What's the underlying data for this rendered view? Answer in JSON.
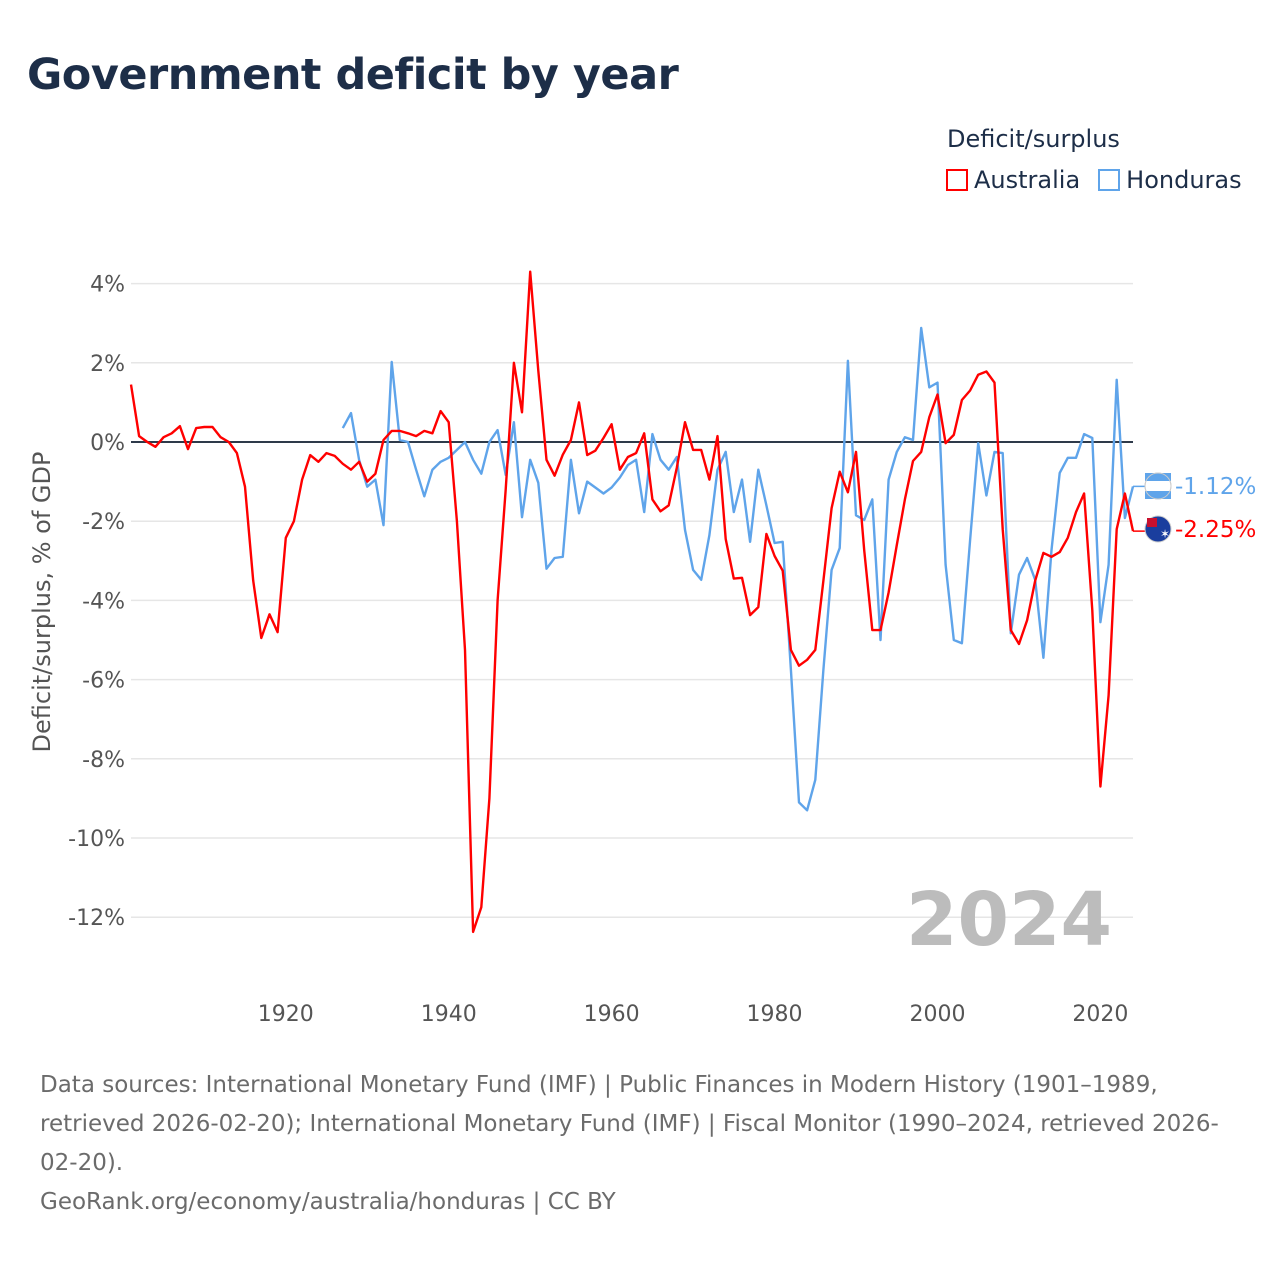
{
  "title": "Government deficit by year",
  "legend": {
    "title": "Deficit/surplus",
    "items": [
      {
        "name": "Australia",
        "color": "#ff0000"
      },
      {
        "name": "Honduras",
        "color": "#5fa4ea"
      }
    ]
  },
  "year_label": "2024",
  "end_labels": {
    "Australia": "-2.25%",
    "Honduras": "-1.12%"
  },
  "footer": {
    "sources": "Data sources: International Monetary Fund (IMF) | Public Finances in Modern History (1901–1989, retrieved 2026-02-20); International Monetary Fund (IMF) | Fiscal Monitor (1990–2024, retrieved 2026-02-20).",
    "credit": "GeoRank.org/economy/australia/honduras | CC BY"
  },
  "chart_data": {
    "type": "line",
    "title": "Government deficit by year",
    "xlabel": "",
    "ylabel": "Deficit/surplus, % of GDP",
    "xlim": [
      1901,
      2024
    ],
    "ylim": [
      -13,
      4.5
    ],
    "xticks": [
      1920,
      1940,
      1960,
      1980,
      2000,
      2020
    ],
    "yticks": [
      4,
      2,
      0,
      -2,
      -4,
      -6,
      -8,
      -10,
      -12
    ],
    "ytick_labels": [
      "4%",
      "2%",
      "0%",
      "-2%",
      "-4%",
      "-6%",
      "-8%",
      "-10%",
      "-12%"
    ],
    "grid": true,
    "legend_position": "top-right",
    "series": [
      {
        "name": "Australia",
        "start_year": 1901,
        "values": [
          1.45,
          0.15,
          0,
          -0.12,
          0.12,
          0.22,
          0.4,
          -0.18,
          0.35,
          0.38,
          0.38,
          0.12,
          0,
          -0.28,
          -1.13,
          -3.5,
          -4.95,
          -4.35,
          -4.8,
          -2.42,
          -2.0,
          -0.95,
          -0.33,
          -0.5,
          -0.28,
          -0.35,
          -0.55,
          -0.7,
          -0.5,
          -1.0,
          -0.8,
          0.05,
          0.28,
          0.28,
          0.22,
          0.15,
          0.28,
          0.22,
          0.78,
          0.5,
          -2.0,
          -5.25,
          -12.37,
          -11.75,
          -9.0,
          -4.0,
          -1.2,
          2.0,
          0.75,
          4.3,
          1.8,
          -0.45,
          -0.85,
          -0.32,
          0.05,
          1.0,
          -0.33,
          -0.22,
          0.1,
          0.45,
          -0.7,
          -0.38,
          -0.28,
          0.22,
          -1.45,
          -1.75,
          -1.6,
          -0.65,
          0.5,
          -0.2,
          -0.2,
          -0.95,
          0.15,
          -2.45,
          -3.45,
          -3.43,
          -4.37,
          -4.17,
          -2.32,
          -2.88,
          -3.25,
          -5.25,
          -5.65,
          -5.5,
          -5.25,
          -3.5,
          -1.67,
          -0.75,
          -1.27,
          -0.25,
          -2.73,
          -4.75,
          -4.75,
          -3.8,
          -2.6,
          -1.45,
          -0.48,
          -0.25,
          0.63,
          1.2,
          -0.03,
          0.18,
          1.06,
          1.3,
          1.7,
          1.78,
          1.5,
          -2.2,
          -4.75,
          -5.1,
          -4.5,
          -3.5,
          -2.8,
          -2.9,
          -2.78,
          -2.42,
          -1.77,
          -1.3,
          -4.25,
          -8.7,
          -6.4,
          -2.2,
          -1.3,
          -2.25
        ]
      },
      {
        "name": "Honduras",
        "start_year": 1927,
        "values": [
          0.35,
          0.73,
          -0.45,
          -1.13,
          -0.95,
          -2.1,
          2.02,
          0.05,
          0,
          -0.7,
          -1.37,
          -0.7,
          -0.5,
          -0.4,
          -0.2,
          0,
          -0.45,
          -0.8,
          0,
          0.3,
          -0.83,
          0.5,
          -1.9,
          -0.45,
          -1.03,
          -3.2,
          -2.93,
          -2.9,
          -0.45,
          -1.8,
          -1.0,
          -1.15,
          -1.3,
          -1.15,
          -0.9,
          -0.58,
          -0.45,
          -1.77,
          0.2,
          -0.45,
          -0.7,
          -0.38,
          -2.22,
          -3.23,
          -3.48,
          -2.35,
          -0.7,
          -0.25,
          -1.77,
          -0.95,
          -2.52,
          -0.7,
          -1.6,
          -2.55,
          -2.52,
          -5.75,
          -9.1,
          -9.3,
          -8.53,
          -5.75,
          -3.23,
          -2.68,
          2.05,
          -1.85,
          -1.97,
          -1.45,
          -5.0,
          -0.95,
          -0.25,
          0.12,
          0.05,
          2.88,
          1.38,
          1.5,
          -3.1,
          -5.0,
          -5.08,
          -2.48,
          -0.03,
          -1.35,
          -0.25,
          -0.28,
          -4.83,
          -3.35,
          -2.93,
          -3.48,
          -5.45,
          -2.73,
          -0.78,
          -0.4,
          -0.4,
          0.2,
          0.1,
          -4.55,
          -3.1,
          1.57,
          -1.92,
          -1.12
        ]
      }
    ]
  }
}
